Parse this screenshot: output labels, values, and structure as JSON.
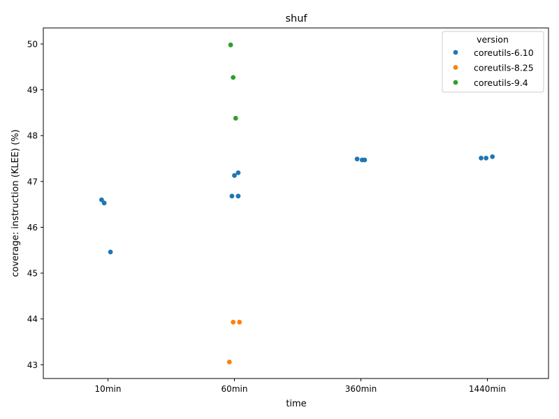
{
  "chart_data": {
    "type": "scatter",
    "title": "shuf",
    "xlabel": "time",
    "ylabel": "coverage: instruction (KLEE) (%)",
    "categories": [
      "10min",
      "60min",
      "360min",
      "1440min"
    ],
    "ylim": [
      42.7,
      50.35
    ],
    "yticks": [
      43,
      44,
      45,
      46,
      47,
      48,
      49,
      50
    ],
    "grid": false,
    "legend": {
      "title": "version",
      "position": "top-right"
    },
    "series": [
      {
        "name": "coreutils-6.10",
        "color": "#1f77b4",
        "points": [
          {
            "category": "10min",
            "jitter": -0.05,
            "y": 46.6
          },
          {
            "category": "10min",
            "jitter": -0.03,
            "y": 46.53
          },
          {
            "category": "10min",
            "jitter": 0.02,
            "y": 45.46
          },
          {
            "category": "60min",
            "jitter": -0.02,
            "y": 46.68
          },
          {
            "category": "60min",
            "jitter": 0.0,
            "y": 47.13
          },
          {
            "category": "60min",
            "jitter": 0.03,
            "y": 47.19
          },
          {
            "category": "60min",
            "jitter": 0.03,
            "y": 46.68
          },
          {
            "category": "360min",
            "jitter": -0.03,
            "y": 47.49
          },
          {
            "category": "360min",
            "jitter": 0.01,
            "y": 47.47
          },
          {
            "category": "360min",
            "jitter": 0.03,
            "y": 47.47
          },
          {
            "category": "1440min",
            "jitter": -0.05,
            "y": 47.51
          },
          {
            "category": "1440min",
            "jitter": -0.01,
            "y": 47.51
          },
          {
            "category": "1440min",
            "jitter": 0.04,
            "y": 47.54
          }
        ]
      },
      {
        "name": "coreutils-8.25",
        "color": "#ff7f0e",
        "points": [
          {
            "category": "60min",
            "jitter": -0.04,
            "y": 43.06
          },
          {
            "category": "60min",
            "jitter": -0.01,
            "y": 43.93
          },
          {
            "category": "60min",
            "jitter": 0.04,
            "y": 43.93
          }
        ]
      },
      {
        "name": "coreutils-9.4",
        "color": "#2ca02c",
        "points": [
          {
            "category": "60min",
            "jitter": -0.03,
            "y": 49.98
          },
          {
            "category": "60min",
            "jitter": -0.01,
            "y": 49.27
          },
          {
            "category": "60min",
            "jitter": 0.01,
            "y": 48.38
          }
        ]
      }
    ]
  }
}
